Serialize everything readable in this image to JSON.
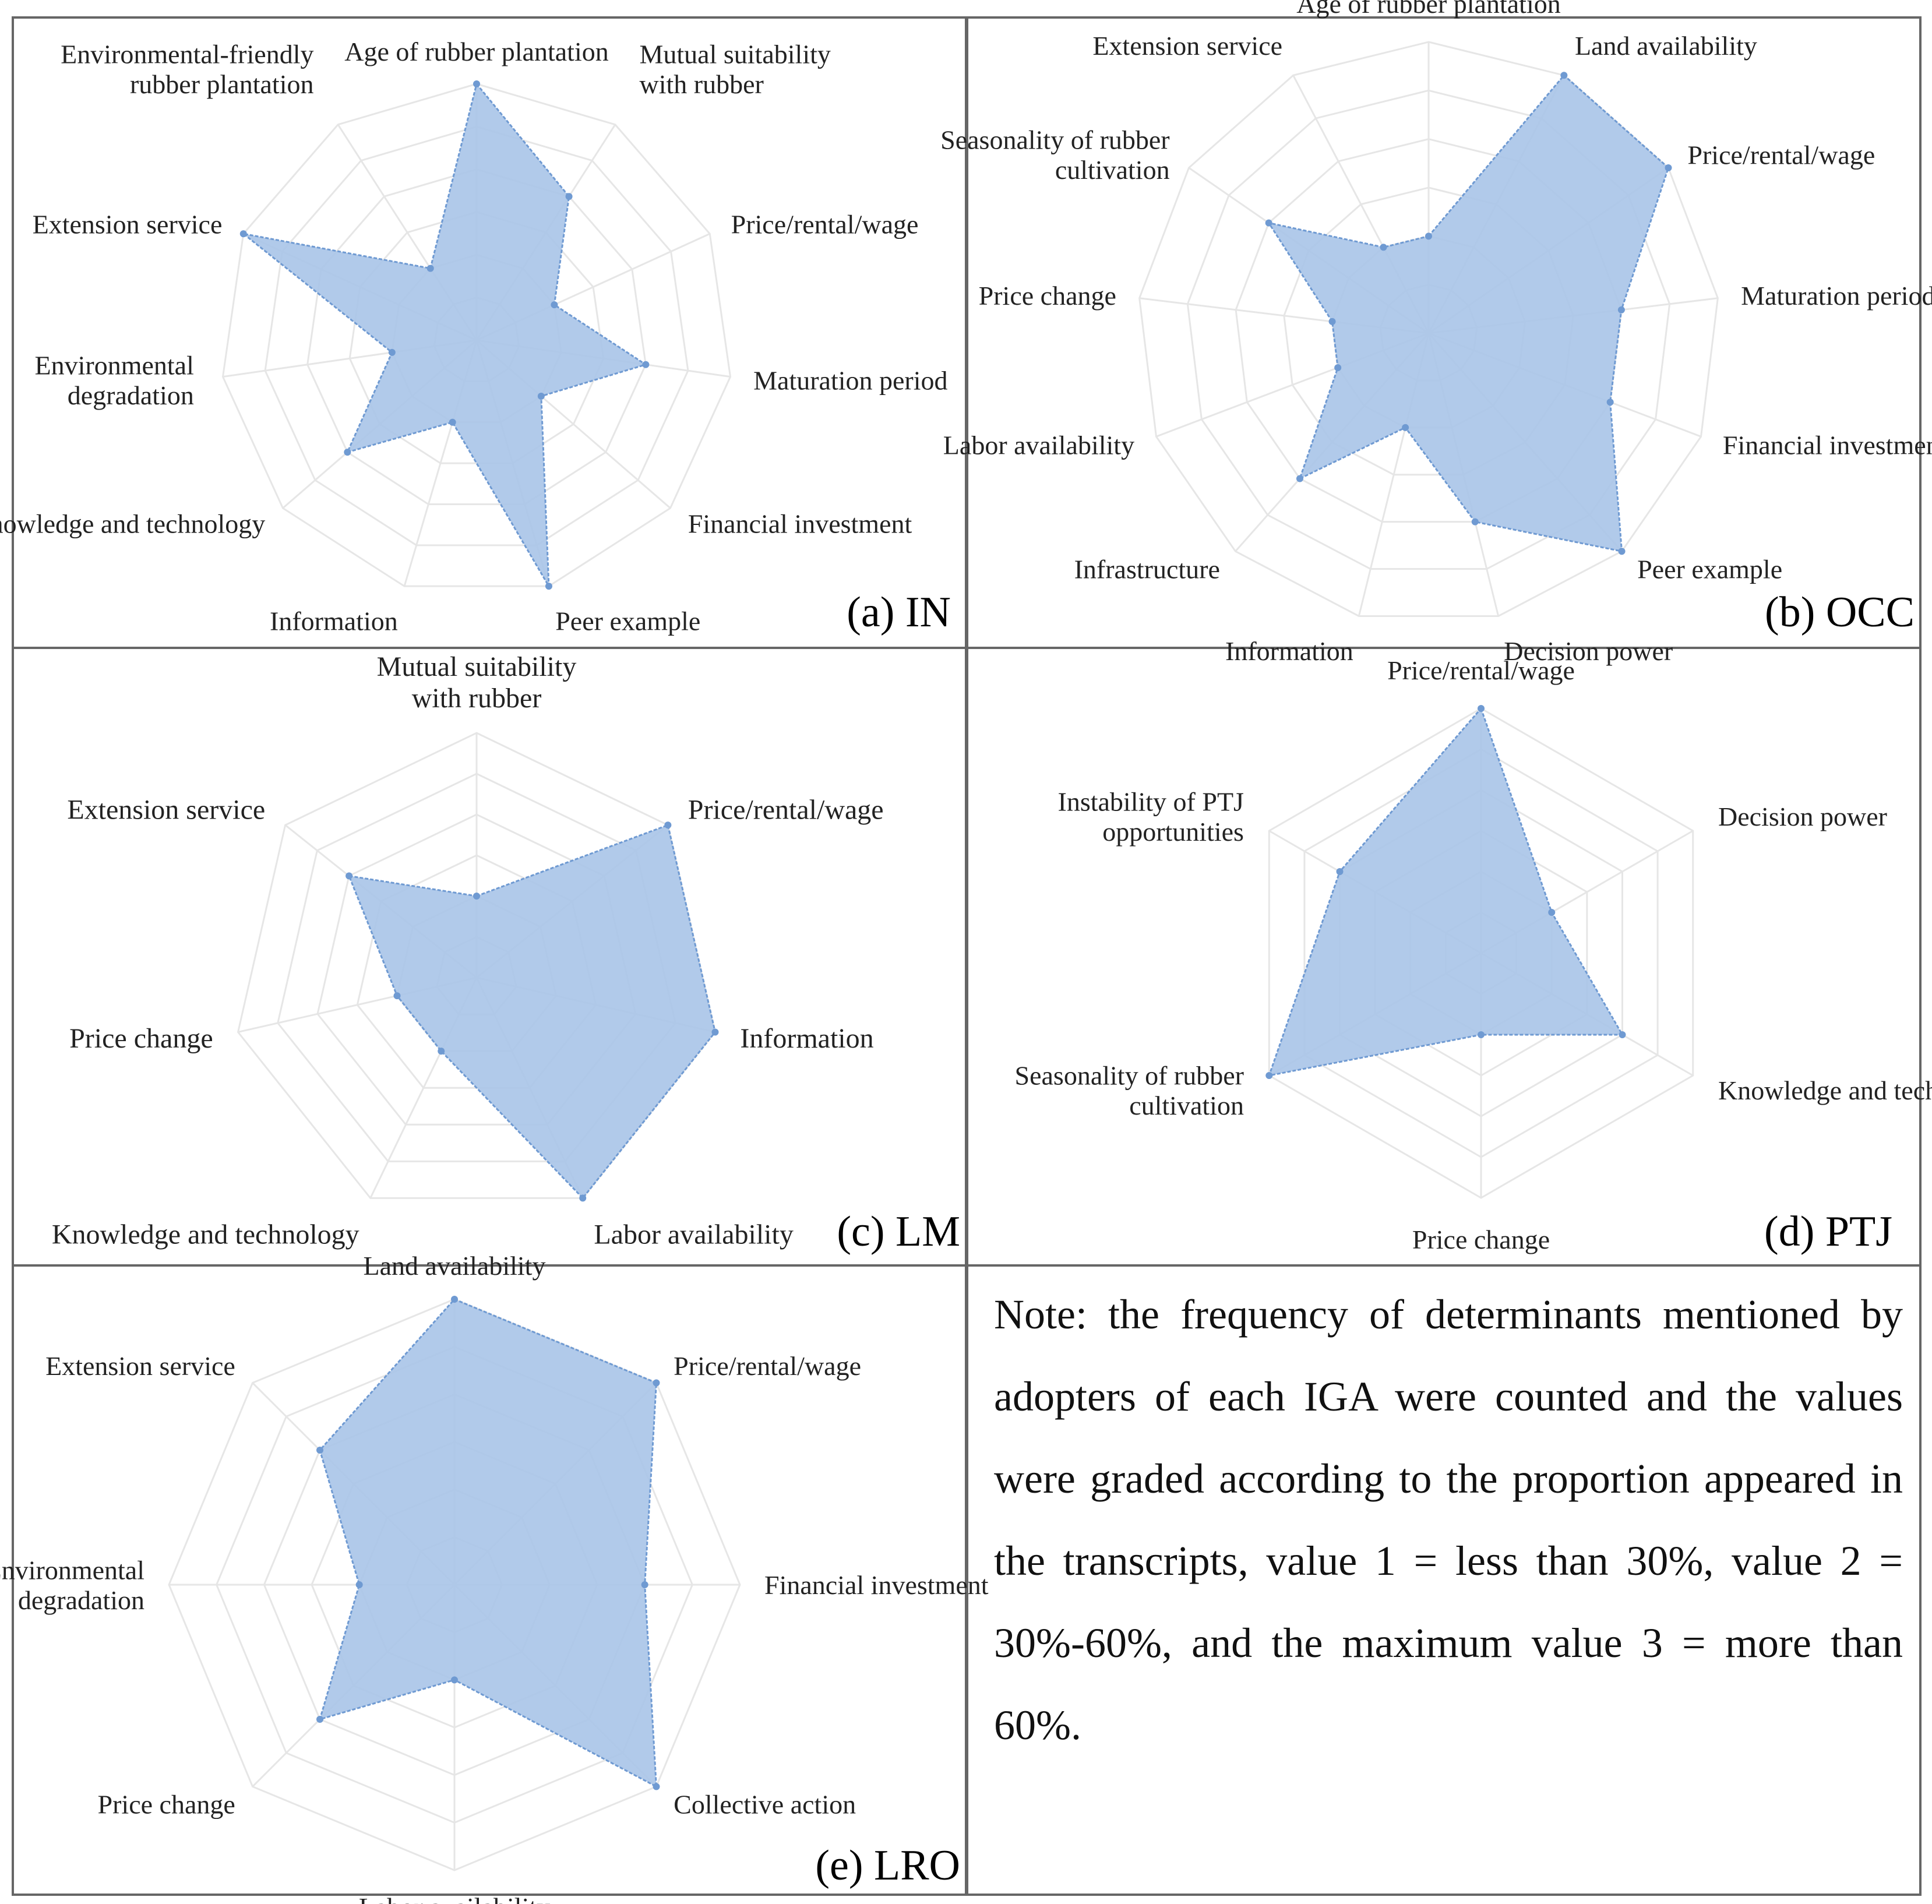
{
  "chart_data": [
    {
      "type": "radar",
      "panel": "(a) IN",
      "max": 3,
      "axes": [
        "Age of rubber plantation",
        "Mutual suitability with rubber",
        "Price/rental/wage",
        "Maturation period",
        "Financial investment",
        "Peer example",
        "Information",
        "Knowledge and technology",
        "Environmental degradation",
        "Extension service",
        "Environmental-friendly rubber plantation"
      ],
      "values": [
        3,
        2,
        1,
        2,
        1,
        3,
        1,
        2,
        1,
        3,
        1
      ]
    },
    {
      "type": "radar",
      "panel": "(b) OCC",
      "max": 3,
      "axes": [
        "Age of rubber plantation",
        "Land availability",
        "Price/rental/wage",
        "Maturation period",
        "Financial investment",
        "Peer example",
        "Decision power",
        "Information",
        "Infrastructure",
        "Labor availability",
        "Price change",
        "Seasonality of rubber cultivation",
        "Extension service"
      ],
      "values": [
        1,
        3,
        3,
        2,
        2,
        3,
        2,
        1,
        2,
        1,
        1,
        2,
        1
      ]
    },
    {
      "type": "radar",
      "panel": "(c) LM",
      "max": 3,
      "axes": [
        "Mutual suitability with rubber",
        "Price/rental/wage",
        "Information",
        "Labor availability",
        "Knowledge and technology",
        "Price change",
        "Extension service"
      ],
      "values": [
        1,
        3,
        3,
        3,
        1,
        1,
        2
      ]
    },
    {
      "type": "radar",
      "panel": "(d) PTJ",
      "max": 3,
      "axes": [
        "Price/rental/wage",
        "Decision power",
        "Knowledge and technology",
        "Price change",
        "Seasonality of rubber cultivation",
        "Instability of PTJ opportunities"
      ],
      "values": [
        3,
        1,
        2,
        1,
        3,
        2
      ]
    },
    {
      "type": "radar",
      "panel": "(e) LRO",
      "max": 3,
      "axes": [
        "Land availability",
        "Price/rental/wage",
        "Financial investment",
        "Collective action",
        "Labor availability",
        "Price change",
        "Environmental degradation",
        "Extension service"
      ],
      "values": [
        3,
        3,
        2,
        3,
        1,
        2,
        1,
        2
      ]
    }
  ],
  "note": "Note: the frequency of determinants mentioned by adopters of each IGA were counted and the values were graded according to the proportion appeared in the transcripts, value 1 = less than 30%, value 2 = 30%-60%, and the maximum value 3 = more than 60%.",
  "colors": {
    "fill": "#a8c4e8",
    "stroke": "#6f9ad2",
    "grid": "#e6e6e6",
    "border": "#666666"
  }
}
